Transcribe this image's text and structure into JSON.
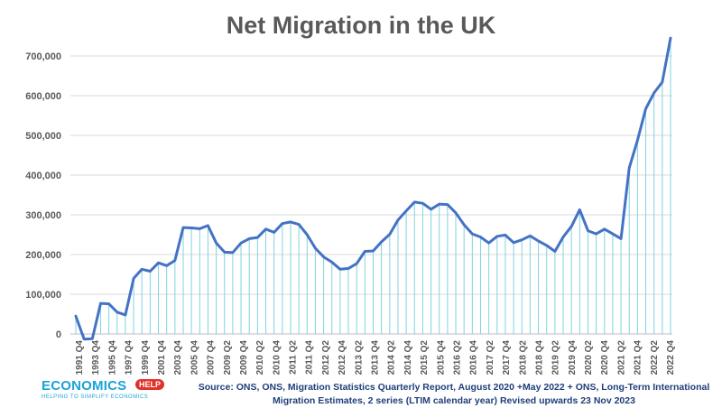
{
  "chart_data": {
    "type": "line",
    "title": "Net Migration in the UK",
    "ylim": [
      0,
      750000
    ],
    "y_ticks": [
      "0",
      "100,000",
      "200,000",
      "300,000",
      "400,000",
      "500,000",
      "600,000",
      "700,000"
    ],
    "y_tick_values": [
      0,
      100000,
      200000,
      300000,
      400000,
      500000,
      600000,
      700000
    ],
    "x_tick_labels": [
      "1991 Q4",
      "1993 Q4",
      "1995 Q4",
      "1997 Q4",
      "1999 Q4",
      "2001 Q4",
      "2003 Q4",
      "2005 Q4",
      "2007 Q4",
      "2009 Q2",
      "2009 Q4",
      "2010 Q2",
      "2010 Q4",
      "2011 Q2",
      "2011 Q4",
      "2012 Q2",
      "2012 Q4",
      "2013 Q2",
      "2013 Q4",
      "2014 Q2",
      "2014 Q4",
      "2015 Q2",
      "2015 Q4",
      "2016 Q2",
      "2016 Q4",
      "2017 Q2",
      "2017 Q4",
      "2018 Q2",
      "2018 Q4",
      "2019 Q2",
      "2019 Q4",
      "2020 Q2",
      "2020 Q4",
      "2021 Q2",
      "2021 Q4",
      "2022 Q2",
      "2022 Q4"
    ],
    "grid": "horizontal",
    "line_color": "#4472c4",
    "drop_line_color": "#7fd3e0",
    "series": [
      {
        "values": [
          45000,
          -13000,
          -12000,
          77000,
          76000,
          55000,
          48000,
          140000,
          163000,
          158000,
          179000,
          172000,
          185000,
          268000,
          267000,
          265000,
          273000,
          229000,
          206000,
          205000,
          229000,
          240000,
          243000,
          264000,
          256000,
          278000,
          282000,
          276000,
          250000,
          216000,
          194000,
          181000,
          163000,
          165000,
          177000,
          208000,
          209000,
          232000,
          251000,
          287000,
          310000,
          332000,
          329000,
          314000,
          327000,
          326000,
          305000,
          275000,
          252000,
          244000,
          229000,
          246000,
          249000,
          230000,
          237000,
          247000,
          234000,
          223000,
          208000,
          244000,
          271000,
          313000,
          260000,
          252000,
          264000,
          252000,
          240000,
          418000,
          488000,
          567000,
          607000,
          634000,
          745000
        ]
      }
    ]
  },
  "source_text": "Source: ONS, ONS, Migration Statistics Quarterly Report, August 2020 +May 2022 + ONS, Long-Term International Migration Estimates, 2 series (LTIM calendar year) Revised upwards 23 Nov 2023",
  "logo": {
    "main": "ECONOMICS",
    "badge": "HELP",
    "tagline": "HELPING TO SIMPLIFY ECONOMICS"
  }
}
